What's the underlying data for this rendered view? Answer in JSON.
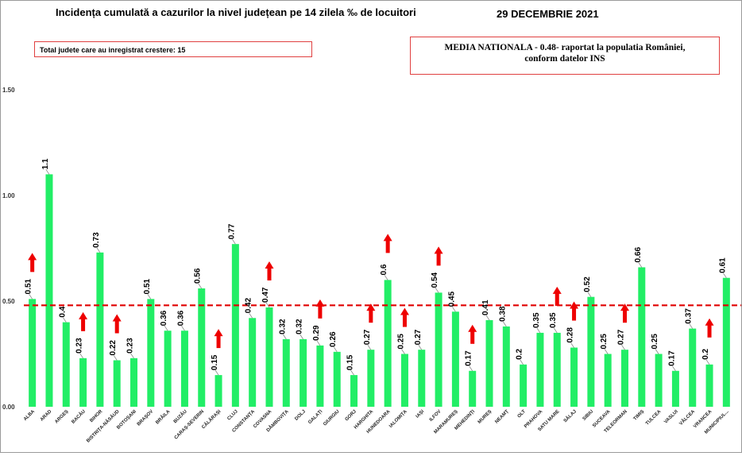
{
  "header": {
    "title": "Incidența cumulată a cazurilor la nivel județean pe 14 zilela ‰ de locuitori",
    "date": "29 DECEMBRIE 2021"
  },
  "info_left": {
    "text": "Total judete care au inregistrat crestere: 15"
  },
  "info_right": {
    "line1": "MEDIA NATIONALA  - 0.48-  raportat la populatia României,",
    "line2": "conform datelor INS"
  },
  "colors": {
    "bar": "#22ee66",
    "reference_line": "#e00000",
    "arrow": "#ee0000"
  },
  "chart_data": {
    "type": "bar",
    "ylim": [
      0,
      1.5
    ],
    "yticks": [
      0.0,
      0.5,
      1.0,
      1.5
    ],
    "ytick_labels": [
      "0.00",
      "0.50",
      "1.00",
      "1.50"
    ],
    "grid": false,
    "reference_line": 0.48,
    "categories": [
      "ALBA",
      "ARAD",
      "ARGEȘ",
      "BACĂU",
      "BIHOR",
      "BISTRIȚA-NĂSĂUD",
      "BOTOȘANI",
      "BRAȘOV",
      "BRĂILA",
      "BUZĂU",
      "CARAȘ-SEVERIN",
      "CĂLĂRAȘI",
      "CLUJ",
      "CONSTANȚA",
      "COVASNA",
      "DÂMBOVIȚA",
      "DOLJ",
      "GALAȚI",
      "GIURGIU",
      "GORJ",
      "HARGHITA",
      "HUNEDOARA",
      "IALOMIȚA",
      "IAȘI",
      "ILFOV",
      "MARAMUREȘ",
      "MEHEDINȚI",
      "MUREȘ",
      "NEAMȚ",
      "OLT",
      "PRAHOVA",
      "SATU MARE",
      "SĂLAJ",
      "SIBIU",
      "SUCEAVA",
      "TELEORMAN",
      "TIMIȘ",
      "TULCEA",
      "VASLUI",
      "VÂLCEA",
      "VRANCEA",
      "MUNICIPIUL..."
    ],
    "values": [
      0.51,
      1.1,
      0.4,
      0.23,
      0.73,
      0.22,
      0.23,
      0.51,
      0.36,
      0.36,
      0.56,
      0.15,
      0.77,
      0.42,
      0.47,
      0.32,
      0.32,
      0.29,
      0.26,
      0.15,
      0.27,
      0.6,
      0.25,
      0.27,
      0.54,
      0.45,
      0.17,
      0.41,
      0.38,
      0.2,
      0.35,
      0.35,
      0.28,
      0.52,
      0.25,
      0.27,
      0.66,
      0.25,
      0.17,
      0.37,
      0.2,
      0.61
    ],
    "value_labels": [
      "0.51",
      "1.1",
      "0.4",
      "0.23",
      "0.73",
      "0.22",
      "0.23",
      "0.51",
      "0.36",
      "0.36",
      "0.56",
      "0.15",
      "0.77",
      "0.42",
      "0.47",
      "0.32",
      "0.32",
      "0.29",
      "0.26",
      "0.15",
      "0.27",
      "0.6",
      "0.25",
      "0.27",
      "0.54",
      "0.45",
      "0.17",
      "0.41",
      "0.38",
      "0.2",
      "0.35",
      "0.35",
      "0.28",
      "0.52",
      "0.25",
      "0.27",
      "0.66",
      "0.25",
      "0.17",
      "0.37",
      "0.2",
      "0.61"
    ],
    "increase_arrows": [
      "ALBA",
      "BACĂU",
      "BISTRIȚA-NĂSĂUD",
      "CĂLĂRAȘI",
      "COVASNA",
      "GALAȚI",
      "HARGHITA",
      "HUNEDOARA",
      "IALOMIȚA",
      "ILFOV",
      "MEHEDINȚI",
      "SATU MARE",
      "SĂLAJ",
      "TELEORMAN",
      "VRANCEA"
    ]
  }
}
